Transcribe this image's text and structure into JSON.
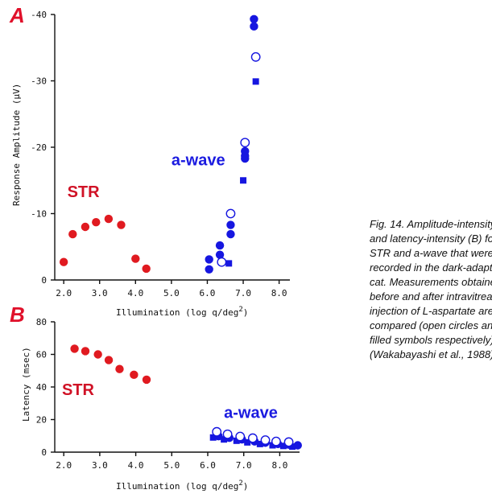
{
  "colors": {
    "red": "#e01a20",
    "blue": "#1616e0",
    "panel_letter": "#e0102a"
  },
  "caption": {
    "lines": [
      "Fig. 14. Amplitude-intensity (A)",
      "and latency-intensity (B) for the",
      "STR and a-wave that were",
      "recorded in the dark-adapted",
      "cat. Measurements obtained",
      "before and after intravitreal",
      "injection of L-aspartate are",
      "compared (open circles and",
      "filled symbols respectively)",
      "(Wakabayashi et al., 1988)."
    ]
  },
  "chart_data": [
    {
      "id": "A",
      "type": "scatter",
      "panel_label": "A",
      "title": "",
      "xlabel": "Illumination (log q/deg²)",
      "ylabel": "Response Amplitude (µV)",
      "xlim": [
        1.75,
        8.3
      ],
      "ylim": [
        0,
        -40
      ],
      "xticks": [
        2.0,
        3.0,
        4.0,
        5.0,
        6.0,
        7.0,
        8.0
      ],
      "xtick_labels": [
        "2.0",
        "3.0",
        "4.0",
        "5.0",
        "6.0",
        "7.0",
        "8.0"
      ],
      "yticks": [
        0,
        -10,
        -20,
        -30,
        -40
      ],
      "ytick_labels": [
        "0",
        "-10",
        "-20",
        "-30",
        "-40"
      ],
      "annotations": [
        {
          "text": "STR",
          "x": 2.1,
          "y": -12.5,
          "color": "red"
        },
        {
          "text": "a-wave",
          "x": 5.0,
          "y": -17.3,
          "color": "blue"
        }
      ],
      "series": [
        {
          "marker": "filled-circle",
          "color": "red",
          "points": [
            [
              2.0,
              -2.7
            ],
            [
              2.25,
              -6.9
            ],
            [
              2.6,
              -8.0
            ],
            [
              2.9,
              -8.7
            ],
            [
              3.25,
              -9.2
            ],
            [
              3.6,
              -8.3
            ],
            [
              4.0,
              -3.2
            ],
            [
              4.3,
              -1.7
            ]
          ]
        },
        {
          "marker": "filled-circle",
          "color": "blue",
          "points": [
            [
              6.05,
              -1.6
            ],
            [
              6.05,
              -3.1
            ],
            [
              6.35,
              -3.8
            ],
            [
              6.35,
              -5.2
            ],
            [
              6.65,
              -6.9
            ],
            [
              6.65,
              -8.3
            ],
            [
              7.05,
              -18.3
            ],
            [
              7.05,
              -18.7
            ],
            [
              7.05,
              -19.4
            ],
            [
              7.3,
              -38.2
            ],
            [
              7.3,
              -39.3
            ]
          ]
        },
        {
          "marker": "open-circle",
          "color": "blue",
          "points": [
            [
              6.4,
              -2.7
            ],
            [
              6.65,
              -10.0
            ],
            [
              7.05,
              -20.7
            ],
            [
              7.35,
              -33.6
            ]
          ]
        },
        {
          "marker": "filled-square",
          "color": "blue",
          "points": [
            [
              6.6,
              -2.5
            ],
            [
              7.0,
              -15.0
            ],
            [
              7.35,
              -29.9
            ]
          ]
        }
      ]
    },
    {
      "id": "B",
      "type": "scatter",
      "panel_label": "B",
      "title": "",
      "xlabel": "Illumination (log q/deg²)",
      "ylabel": "Latency (msec)",
      "xlim": [
        1.75,
        8.55
      ],
      "ylim": [
        0,
        80
      ],
      "xticks": [
        2.0,
        3.0,
        4.0,
        5.0,
        6.0,
        7.0,
        8.0
      ],
      "xtick_labels": [
        "2.0",
        "3.0",
        "4.0",
        "5.0",
        "6.0",
        "7.0",
        "8.0"
      ],
      "yticks": [
        0,
        20,
        40,
        60,
        80
      ],
      "ytick_labels": [
        "0",
        "20",
        "40",
        "60",
        "80"
      ],
      "annotations": [
        {
          "text": "STR",
          "x": 1.95,
          "y": 35,
          "color": "red"
        },
        {
          "text": "a-wave",
          "x": 6.45,
          "y": 21,
          "color": "blue"
        }
      ],
      "series": [
        {
          "marker": "filled-circle",
          "color": "red",
          "points": [
            [
              2.3,
              63.5
            ],
            [
              2.6,
              62.0
            ],
            [
              2.95,
              60.0
            ],
            [
              3.25,
              56.5
            ],
            [
              3.55,
              51.0
            ],
            [
              3.95,
              47.5
            ],
            [
              4.3,
              44.5
            ]
          ]
        },
        {
          "marker": "filled-square",
          "color": "blue",
          "points": [
            [
              6.15,
              9.0
            ],
            [
              6.45,
              7.8
            ],
            [
              6.8,
              7.0
            ],
            [
              7.1,
              6.0
            ],
            [
              7.45,
              5.0
            ],
            [
              7.8,
              4.2
            ],
            [
              8.1,
              3.8
            ],
            [
              8.35,
              3.4
            ]
          ]
        },
        {
          "marker": "filled-circle",
          "color": "blue",
          "points": [
            [
              6.3,
              9.8
            ],
            [
              6.6,
              8.8
            ],
            [
              6.95,
              7.8
            ],
            [
              7.3,
              6.6
            ],
            [
              7.6,
              5.8
            ],
            [
              7.95,
              5.0
            ],
            [
              8.25,
              4.6
            ],
            [
              8.5,
              4.2
            ]
          ]
        },
        {
          "marker": "open-circle",
          "color": "blue",
          "points": [
            [
              6.25,
              12.5
            ],
            [
              6.55,
              11.0
            ],
            [
              6.9,
              9.6
            ],
            [
              7.25,
              8.6
            ],
            [
              7.6,
              7.4
            ],
            [
              7.9,
              6.6
            ],
            [
              8.25,
              6.2
            ]
          ]
        }
      ]
    }
  ]
}
